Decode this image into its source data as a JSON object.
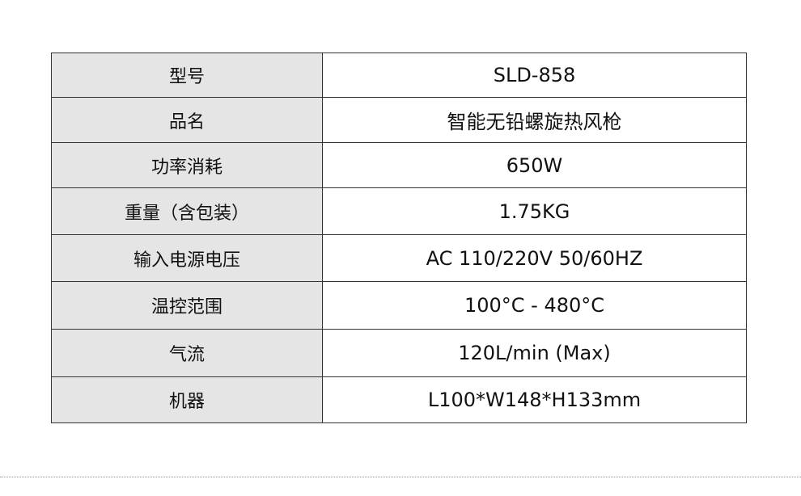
{
  "specs": [
    {
      "label": "型号",
      "value": "SLD-858"
    },
    {
      "label": "品名",
      "value": "智能无铅螺旋热风枪"
    },
    {
      "label": "功率消耗",
      "value": "650W"
    },
    {
      "label": "重量（含包装）",
      "value": "1.75KG"
    },
    {
      "label": "输入电源电压",
      "value": "AC 110/220V 50/60HZ"
    },
    {
      "label": "温控范围",
      "value": "100°C - 480°C"
    },
    {
      "label": "气流",
      "value": "120L/min (Max)"
    },
    {
      "label": "机器",
      "value": "L100*W148*H133mm"
    }
  ]
}
